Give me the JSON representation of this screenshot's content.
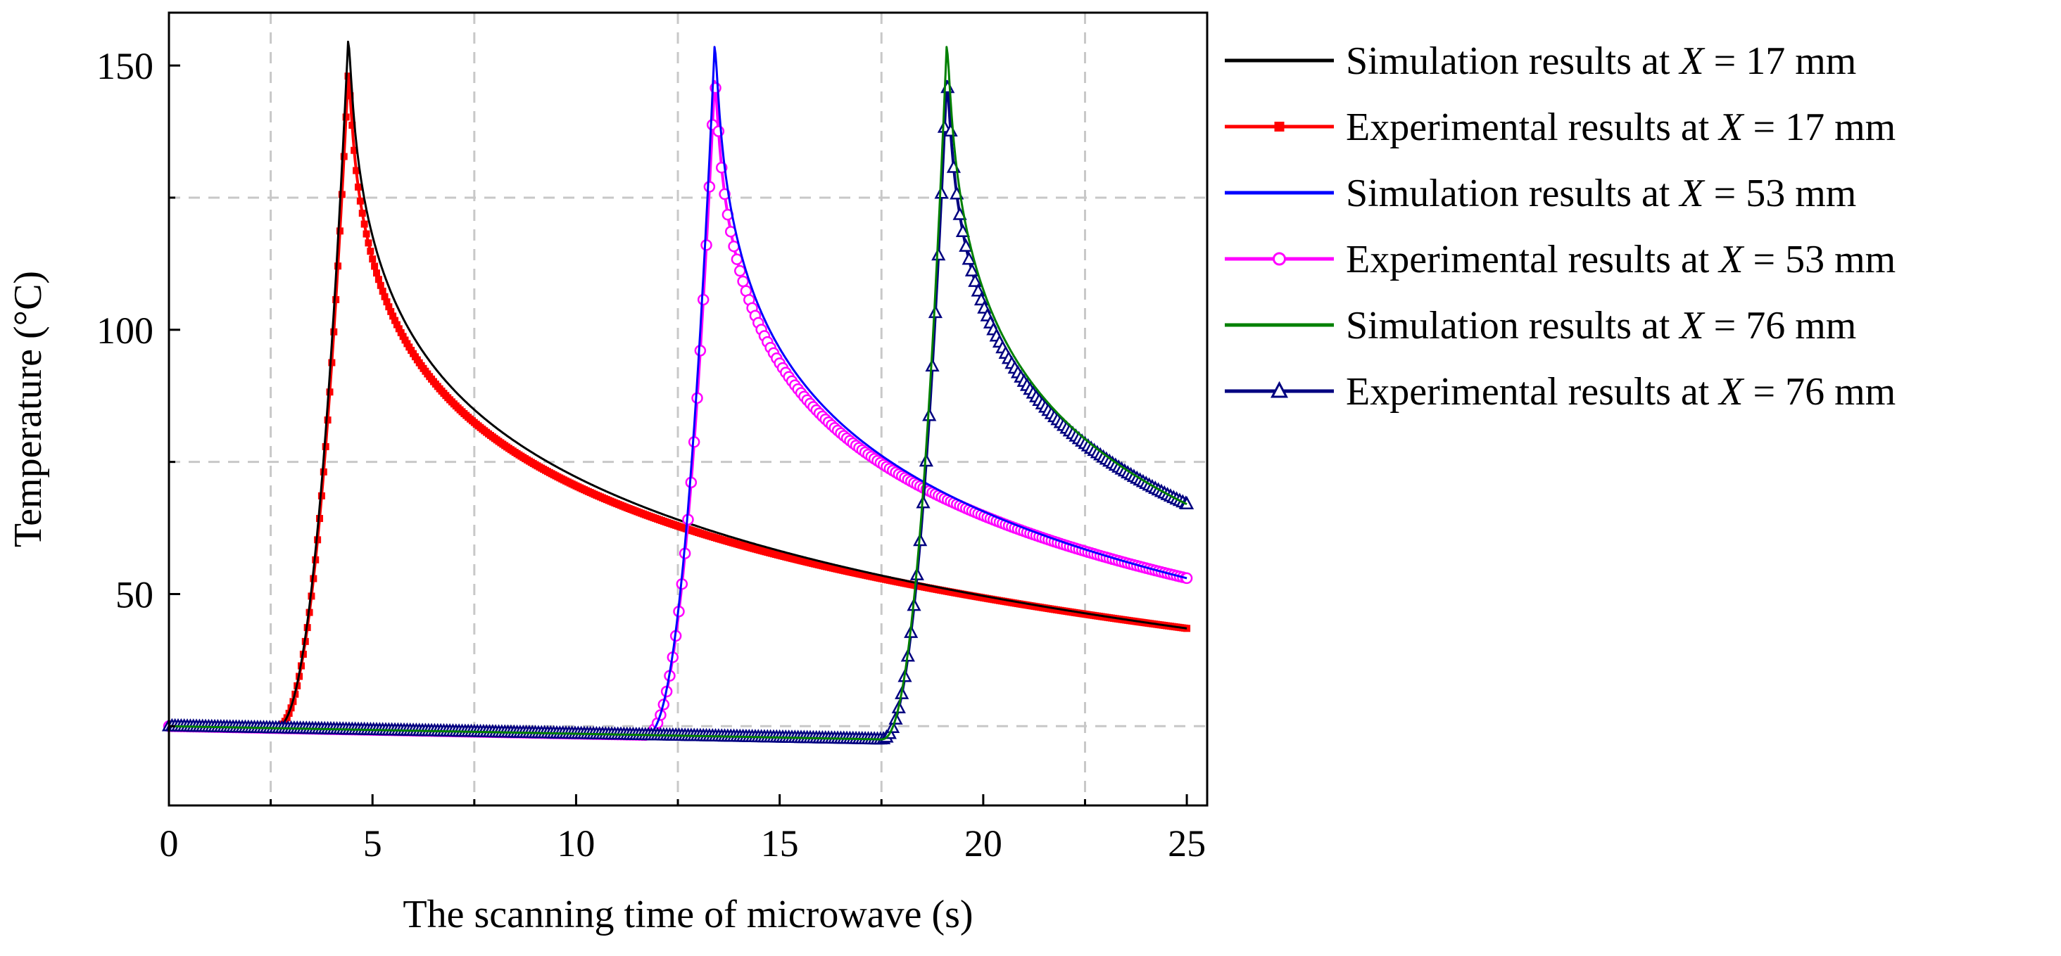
{
  "chart_data": {
    "type": "line",
    "title": "",
    "xlabel": "The scanning time of microwave (s)",
    "ylabel": "Temperature (°C)",
    "xlim": [
      0,
      25.5
    ],
    "ylim": [
      10,
      160
    ],
    "xticks": [
      0,
      5,
      10,
      15,
      20,
      25
    ],
    "xtick_labels": [
      "0",
      "5",
      "10",
      "15",
      "20",
      "25"
    ],
    "yticks": [
      50,
      100,
      150
    ],
    "ytick_labels": [
      "50",
      "100",
      "150"
    ],
    "x_gridlines": [
      2.5,
      7.5,
      12.5,
      17.5,
      22.5
    ],
    "y_gridlines": [
      25,
      75,
      125
    ],
    "grid": true,
    "legend_position": "right",
    "legend_var": "X",
    "legend_eq": " = ",
    "series": [
      {
        "name": "Simulation results at X = 17 mm",
        "prefix": "Simulation results at ",
        "value": "17",
        "unit": " mm",
        "color": "#000000",
        "marker": "none",
        "t_start": 2.6,
        "t_peak": 4.4,
        "peak": 154.5,
        "end_value": 43.5
      },
      {
        "name": "Experimental results at X = 17 mm",
        "prefix": "Experimental results at ",
        "value": "17",
        "unit": " mm",
        "color": "#ff0000",
        "marker": "square",
        "t_start": 2.6,
        "t_peak": 4.4,
        "peak": 148,
        "end_value": 43.5
      },
      {
        "name": "Simulation results at X = 53 mm",
        "prefix": "Simulation results at ",
        "value": "53",
        "unit": " mm",
        "color": "#0000ff",
        "marker": "none",
        "t_start": 11.7,
        "t_peak": 13.4,
        "peak": 153.5,
        "end_value": 53
      },
      {
        "name": "Experimental results at X = 53 mm",
        "prefix": "Experimental results at ",
        "value": "53",
        "unit": " mm",
        "color": "#ff00ff",
        "marker": "circle",
        "t_start": 11.7,
        "t_peak": 13.4,
        "peak": 147,
        "end_value": 53
      },
      {
        "name": "Simulation results at X = 76 mm",
        "prefix": "Simulation results at ",
        "value": "76",
        "unit": " mm",
        "color": "#008000",
        "marker": "none",
        "t_start": 17.5,
        "t_peak": 19.1,
        "peak": 153.5,
        "end_value": 67
      },
      {
        "name": "Experimental results at X = 76 mm",
        "prefix": "Experimental results at ",
        "value": "76",
        "unit": " mm",
        "color": "#000080",
        "marker": "triangle",
        "t_start": 17.5,
        "t_peak": 19.1,
        "peak": 147,
        "end_value": 67
      }
    ],
    "baseline": {
      "start_value": 25,
      "end_value": 22.5,
      "t_end": 17.5
    }
  }
}
